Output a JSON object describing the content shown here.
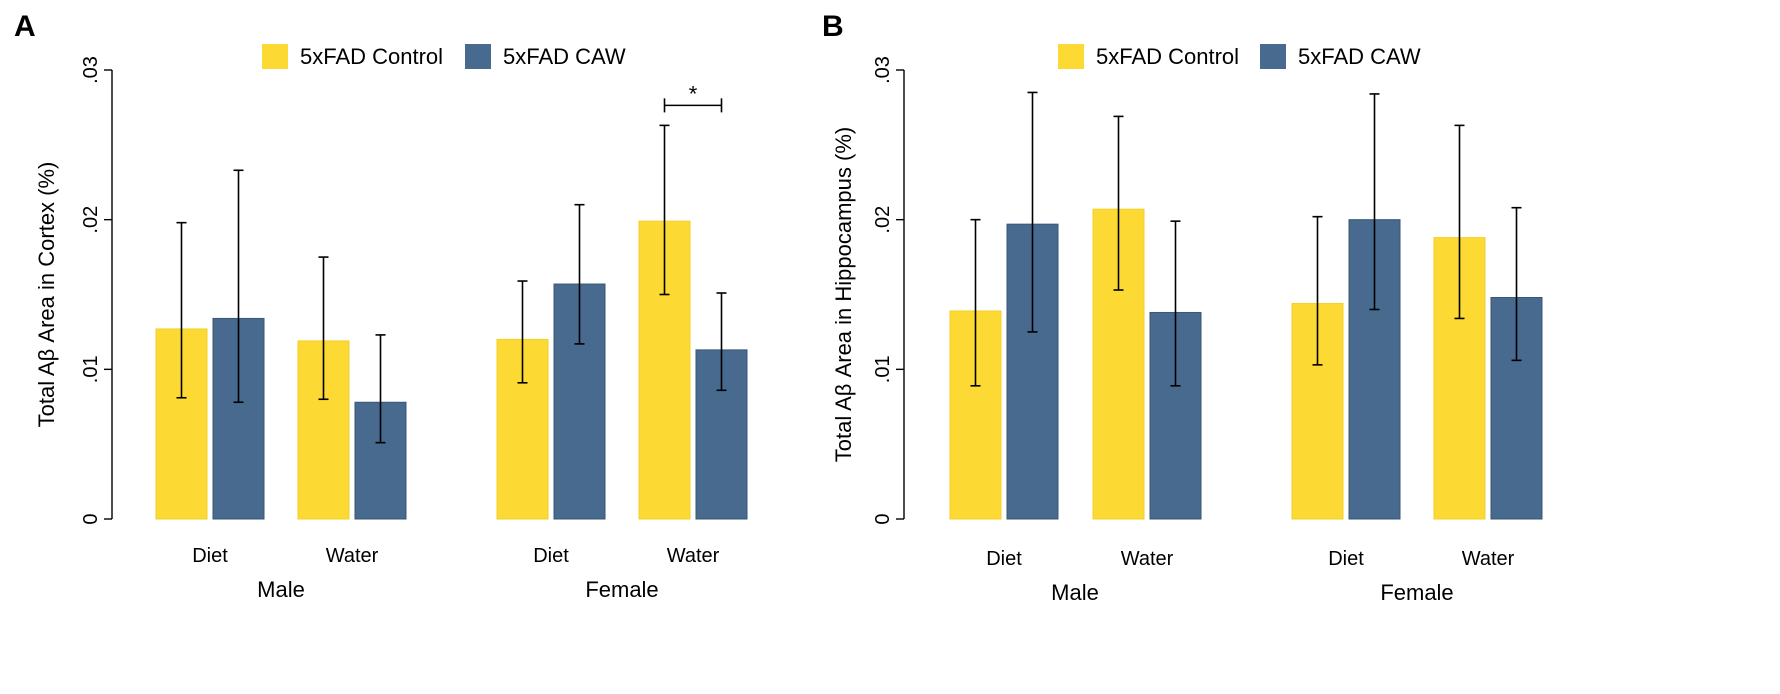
{
  "chart_data": [
    {
      "type": "bar",
      "panel_label": "A",
      "ylabel": "Total Aβ Area in Cortex (%)",
      "ylim": [
        0,
        0.03
      ],
      "yticks": [
        0,
        0.01,
        0.02,
        0.03
      ],
      "ytick_labels": [
        "0",
        ".01",
        ".02",
        ".03"
      ],
      "grid": false,
      "legend_position": "top-center",
      "groups": [
        "Male",
        "Female"
      ],
      "categories": [
        {
          "group": "Male",
          "label": "Diet"
        },
        {
          "group": "Male",
          "label": "Water"
        },
        {
          "group": "Female",
          "label": "Diet"
        },
        {
          "group": "Female",
          "label": "Water"
        }
      ],
      "series": [
        {
          "name": "5xFAD Control",
          "color": "#FDD934",
          "values": [
            0.0127,
            0.0119,
            0.012,
            0.0199
          ],
          "error_low": [
            0.0081,
            0.008,
            0.0091,
            0.015
          ],
          "error_high": [
            0.0198,
            0.0175,
            0.0159,
            0.0263
          ]
        },
        {
          "name": "5xFAD CAW",
          "color": "#476A8E",
          "values": [
            0.0134,
            0.0078,
            0.0157,
            0.0113
          ],
          "error_low": [
            0.0078,
            0.0051,
            0.0117,
            0.0086
          ],
          "error_high": [
            0.0233,
            0.0123,
            0.021,
            0.0151
          ]
        }
      ],
      "annotations": [
        {
          "text": "*",
          "category_index": 3
        }
      ]
    },
    {
      "type": "bar",
      "panel_label": "B",
      "ylabel": "Total Aβ Area in Hippocampus (%)",
      "ylim": [
        0,
        0.03
      ],
      "yticks": [
        0,
        0.01,
        0.02,
        0.03
      ],
      "ytick_labels": [
        "0",
        ".01",
        ".02",
        ".03"
      ],
      "grid": false,
      "legend_position": "top-center",
      "groups": [
        "Male",
        "Female"
      ],
      "categories": [
        {
          "group": "Male",
          "label": "Diet"
        },
        {
          "group": "Male",
          "label": "Water"
        },
        {
          "group": "Female",
          "label": "Diet"
        },
        {
          "group": "Female",
          "label": "Water"
        }
      ],
      "series": [
        {
          "name": "5xFAD Control",
          "color": "#FDD934",
          "values": [
            0.0139,
            0.0207,
            0.0144,
            0.0188
          ],
          "error_low": [
            0.0089,
            0.0153,
            0.0103,
            0.0134
          ],
          "error_high": [
            0.02,
            0.0269,
            0.0202,
            0.0263
          ]
        },
        {
          "name": "5xFAD CAW",
          "color": "#476A8E",
          "values": [
            0.0197,
            0.0138,
            0.02,
            0.0148
          ],
          "error_low": [
            0.0125,
            0.0089,
            0.014,
            0.0106
          ],
          "error_high": [
            0.0285,
            0.0199,
            0.0284,
            0.0208
          ]
        }
      ],
      "annotations": []
    }
  ]
}
